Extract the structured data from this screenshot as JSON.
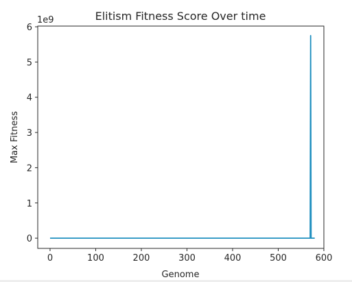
{
  "chart_data": {
    "type": "line",
    "title": "Elitism Fitness Score Over time",
    "xlabel": "Genome",
    "ylabel": "Max Fitness",
    "y_offset_text": "1e9",
    "xlim": [
      -27,
      600
    ],
    "ylim": [
      -0.29,
      6.02
    ],
    "x_ticks": [
      0,
      100,
      200,
      300,
      400,
      500,
      600
    ],
    "x_tick_labels": [
      "0",
      "100",
      "200",
      "300",
      "400",
      "500",
      "600"
    ],
    "y_ticks": [
      0,
      1,
      2,
      3,
      4,
      5,
      6
    ],
    "y_tick_labels": [
      "0",
      "1",
      "2",
      "3",
      "4",
      "5",
      "6"
    ],
    "y_scale": 1000000000,
    "grid": false,
    "series": [
      {
        "color": "#1f8fbf",
        "x": [
          0,
          567,
          568,
          569,
          570,
          571,
          572,
          573,
          574,
          575,
          576,
          577,
          578,
          579,
          580
        ],
        "y": [
          0,
          0,
          0,
          0,
          0,
          5.75,
          0,
          0,
          0,
          0,
          0,
          0,
          0,
          0,
          0
        ]
      }
    ]
  }
}
